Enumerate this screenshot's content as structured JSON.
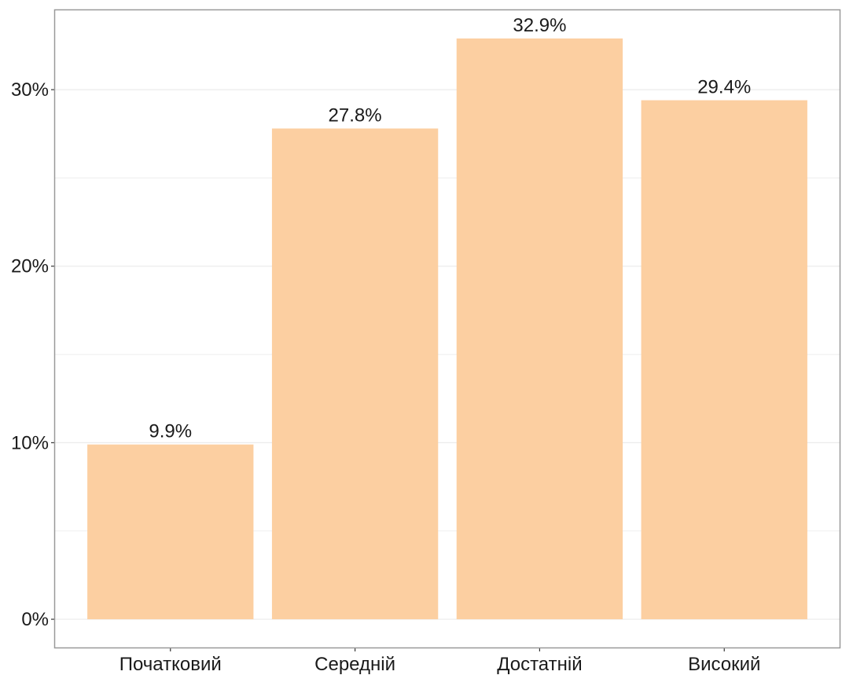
{
  "chart_data": {
    "type": "bar",
    "categories": [
      "Початковий",
      "Середній",
      "Достатній",
      "Високий"
    ],
    "values": [
      9.9,
      27.8,
      32.9,
      29.4
    ],
    "data_labels": [
      "9.9%",
      "27.8%",
      "32.9%",
      "29.4%"
    ],
    "y_ticks": [
      0,
      10,
      20,
      30
    ],
    "y_tick_labels": [
      "0%",
      "10%",
      "20%",
      "30%"
    ],
    "ylim": [
      -1.6,
      34.5
    ],
    "title": "",
    "xlabel": "",
    "ylabel": "",
    "grid": true,
    "bar_color": "#fccfa1",
    "gridline_color": "#ebebeb",
    "panel_border_color": "#999999"
  }
}
